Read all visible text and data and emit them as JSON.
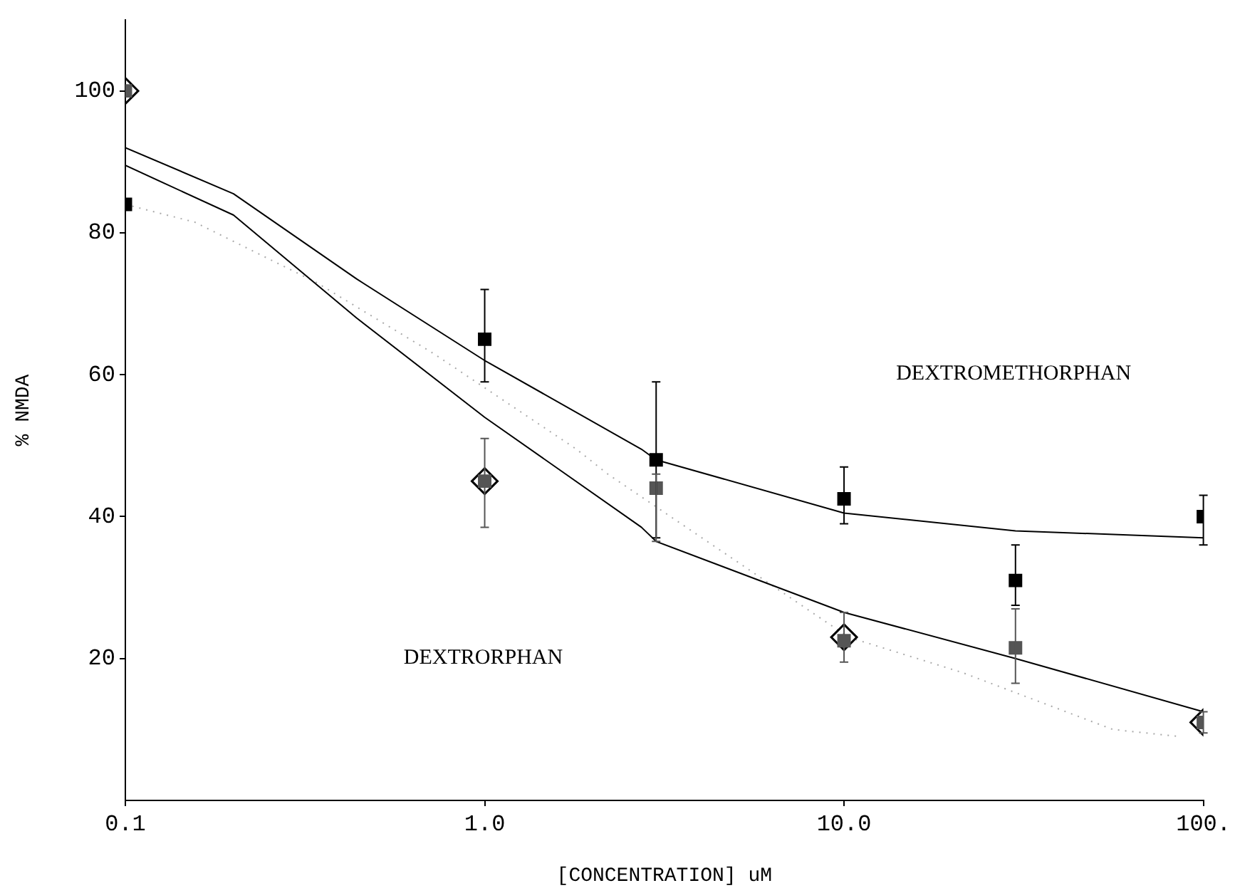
{
  "chart_data": {
    "type": "scatter",
    "xlabel": "[CONCENTRATION] uM",
    "ylabel": "% NMDA",
    "log": "x",
    "xlim": [
      0.1,
      100
    ],
    "xticks": [
      {
        "value": 0.1,
        "label": "0.1"
      },
      {
        "value": 1,
        "label": "1.0"
      },
      {
        "value": 10,
        "label": "10.0"
      },
      {
        "value": 100,
        "label": "100."
      }
    ],
    "ylim": [
      0,
      110
    ],
    "yticks": [
      20,
      40,
      60,
      80,
      100
    ],
    "grid": false,
    "legend": false,
    "series": [
      {
        "marker": "square",
        "color": "#000000",
        "x": [
          0.1,
          1,
          3,
          10,
          30,
          100
        ],
        "values": [
          84,
          65,
          48,
          42.5,
          31,
          40
        ],
        "errors": [
          null,
          [
            59,
            72
          ],
          [
            37,
            59
          ],
          [
            39,
            47
          ],
          [
            27.5,
            36
          ],
          [
            36,
            43
          ]
        ]
      },
      {
        "marker": "square",
        "color": "#555555",
        "x": [
          0.1,
          1,
          3,
          10,
          30,
          100
        ],
        "values": [
          100,
          45,
          44,
          22.5,
          21.5,
          11
        ],
        "errors": [
          null,
          [
            38.5,
            51
          ],
          [
            36.5,
            46
          ],
          [
            19.5,
            26.5
          ],
          [
            16.5,
            27
          ],
          [
            9.5,
            12.5
          ]
        ]
      },
      {
        "marker": "diamond",
        "color": "#000000",
        "x": [
          0.1,
          1,
          10,
          100
        ],
        "values": [
          100,
          45,
          23,
          11
        ]
      },
      {
        "type": "line",
        "line_style": "solid",
        "color": "#000000",
        "x": [
          0.1,
          0.2,
          0.44,
          1,
          2.73,
          3,
          10,
          30,
          100
        ],
        "values": [
          92,
          85.5,
          73.5,
          62,
          49.5,
          48,
          40.5,
          38,
          37
        ]
      },
      {
        "type": "line",
        "line_style": "solid",
        "color": "#000000",
        "x": [
          0.1,
          0.2,
          0.44,
          1,
          2.73,
          3,
          10,
          30,
          100
        ],
        "values": [
          89.5,
          82.5,
          68,
          54,
          38.5,
          36.5,
          26.5,
          20,
          12.5
        ]
      },
      {
        "type": "line",
        "line_style": "dotted",
        "color": "#aaaaaa",
        "x": [
          0.1,
          0.156,
          0.34,
          0.72,
          1.8,
          2.2,
          10.3,
          17.2,
          21.4,
          56,
          86
        ],
        "values": [
          84,
          81.5,
          73,
          63,
          49.5,
          46,
          23,
          19.5,
          18,
          10,
          9
        ]
      }
    ],
    "annotations": [
      "DEXTROMETHORPHAN",
      "DEXTRORPHAN"
    ]
  }
}
